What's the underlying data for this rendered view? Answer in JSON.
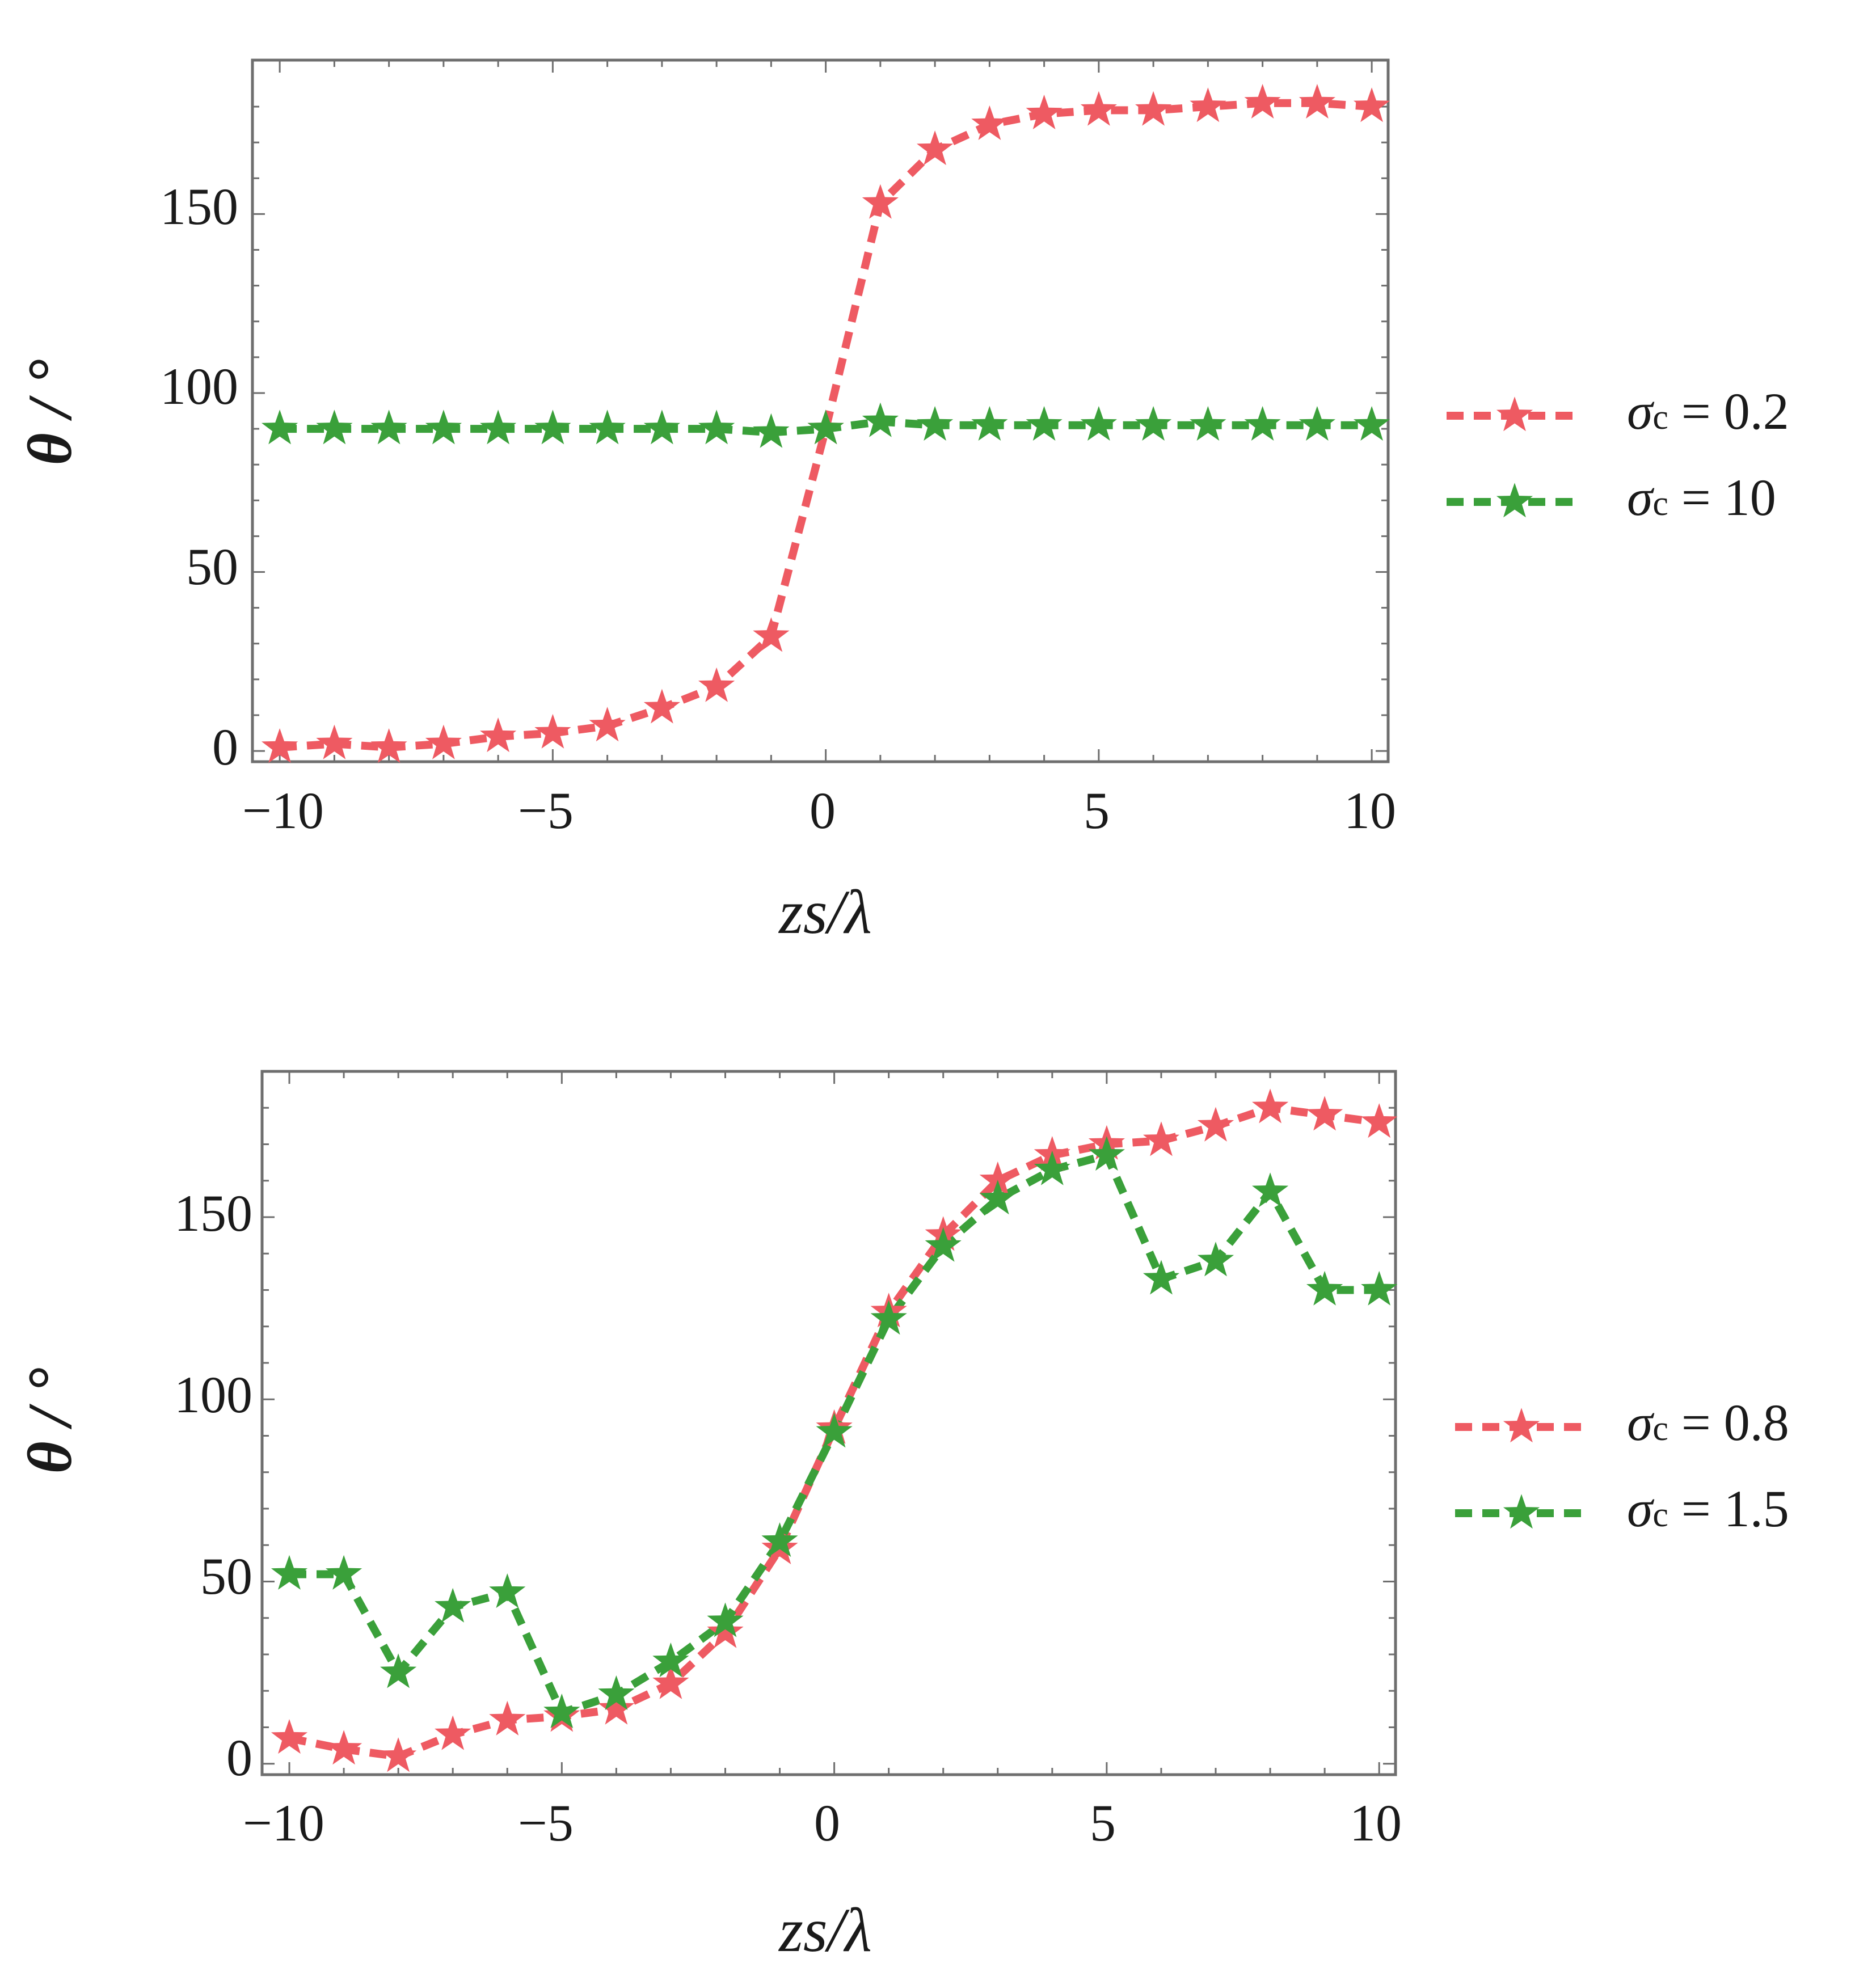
{
  "chart_data": [
    {
      "type": "line",
      "xlabel": "zs/λ",
      "ylabel": "θ / °",
      "xlim": [
        -10.5,
        10.3
      ],
      "ylim": [
        -3,
        193
      ],
      "xticks": [
        -10,
        -5,
        0,
        5,
        10
      ],
      "yticks": [
        0,
        50,
        100,
        150
      ],
      "xtick_labels": [
        "−10",
        "−5",
        "0",
        "5",
        "10"
      ],
      "ytick_labels": [
        "0",
        "50",
        "100",
        "150"
      ],
      "legend_position": "right",
      "x": [
        -10,
        -9,
        -8,
        -7,
        -6,
        -5,
        -4,
        -3,
        -2,
        -1,
        0,
        1,
        2,
        3,
        4,
        5,
        6,
        7,
        8,
        9,
        10
      ],
      "series": [
        {
          "name": "σc = 0.2",
          "symbol": "σ",
          "subscript": "c",
          "value_text": " = 0.2",
          "color": "#ee5a62",
          "values": [
            1,
            2,
            1,
            2,
            4,
            5,
            7,
            12,
            18,
            32,
            90,
            153,
            168,
            175,
            178,
            179,
            179,
            180,
            181,
            181,
            180
          ]
        },
        {
          "name": "σc = 10",
          "symbol": "σ",
          "subscript": "c",
          "value_text": " = 10",
          "color": "#3aa03a",
          "values": [
            90,
            90,
            90,
            90,
            90,
            90,
            90,
            90,
            90,
            89,
            90,
            92,
            91,
            91,
            91,
            91,
            91,
            91,
            91,
            91,
            91
          ]
        }
      ]
    },
    {
      "type": "line",
      "xlabel": "zs/λ",
      "ylabel": "θ / °",
      "xlim": [
        -10.5,
        10.3
      ],
      "ylim": [
        -3,
        190
      ],
      "xticks": [
        -10,
        -5,
        0,
        5,
        10
      ],
      "yticks": [
        0,
        50,
        100,
        150
      ],
      "xtick_labels": [
        "−10",
        "−5",
        "0",
        "5",
        "10"
      ],
      "ytick_labels": [
        "0",
        "50",
        "100",
        "150"
      ],
      "legend_position": "right",
      "x": [
        -10,
        -9,
        -8,
        -7,
        -6,
        -5,
        -4,
        -3,
        -2,
        -1,
        0,
        1,
        2,
        3,
        4,
        5,
        6,
        7,
        8,
        9,
        10
      ],
      "series": [
        {
          "name": "σc = 0.8",
          "symbol": "σ",
          "subscript": "c",
          "value_text": " = 0.8",
          "color": "#ee5a62",
          "values": [
            7,
            4,
            2,
            8,
            12,
            13,
            15,
            22,
            36,
            59,
            92,
            124,
            145,
            160,
            167,
            170,
            171,
            175,
            180,
            178,
            176
          ]
        },
        {
          "name": "σc = 1.5",
          "symbol": "σ",
          "subscript": "c",
          "value_text": " = 1.5",
          "color": "#3aa03a",
          "values": [
            52,
            52,
            25,
            43,
            47,
            14,
            19,
            28,
            39,
            61,
            91,
            122,
            142,
            155,
            163,
            167,
            133,
            138,
            157,
            130,
            130
          ]
        }
      ]
    }
  ]
}
